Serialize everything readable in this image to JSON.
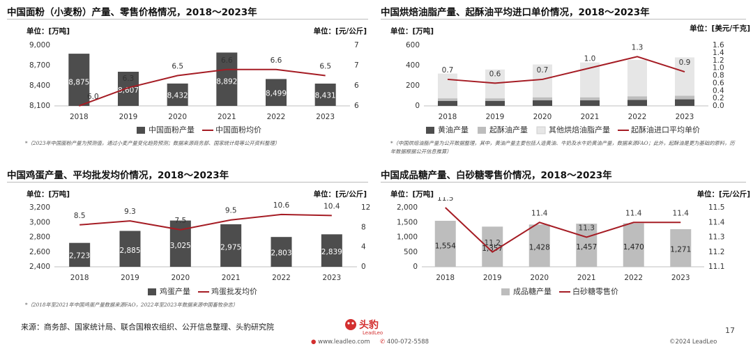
{
  "colors": {
    "dark_bar": "#4d4d4d",
    "light_bar": "#bdbdbd",
    "lighter_bar": "#e6e6e6",
    "line": "#a51c24",
    "brand": "#d32f2f"
  },
  "panels": [
    {
      "title": "中国面粉（小麦粉）产量、零售价格情况，2018～2023年",
      "unit_left": "单位：[万吨]",
      "unit_right": "单位：[元/公斤]",
      "note": "*（2023年中国面粉产量为预测值，通过小麦产量变化趋势预测；数据来源商务部、国家统计局等公开资料整理）"
    },
    {
      "title": "中国烘焙油脂产量、起酥油平均进口单价情况，2018～2023年",
      "unit_left": "单位：[万吨]",
      "unit_right": "单位：[美元/千克]",
      "note": "*（中国烘焙油脂产量为公开数据整理，其中，黄油产量主要包括人造黄油、牛奶及水牛奶黄油产量，数据来源FAO；此外，起酥油是更为基础的原料，历年数据根据公开信息推算）"
    },
    {
      "title": "中国鸡蛋产量、平均批发均价情况，2018～2023年",
      "unit_left": "单位：[万吨]",
      "unit_right": "单位：[元/公斤]",
      "note": "*（2018年至2021年中国鸡蛋产量数据来源FAO，2022年至2023年数据来源中国畜牧杂志）"
    },
    {
      "title": "中国成品糖产量、白砂糖零售价情况，2018～2023年",
      "unit_left": "单位：[万吨]",
      "unit_right": "单位：[元/公斤]",
      "note": ""
    }
  ],
  "chart_data": [
    {
      "type": "bar",
      "categories": [
        "2018",
        "2019",
        "2020",
        "2021",
        "2022",
        "2023"
      ],
      "series": [
        {
          "name": "中国面粉产量",
          "kind": "bar",
          "axis": "left",
          "values": [
            8875,
            8607,
            8432,
            8892,
            8499,
            8431
          ],
          "labels": [
            "8,875",
            "8,607",
            "8,432",
            "8,892",
            "8,499",
            "8,431"
          ]
        },
        {
          "name": "中国面粉均价",
          "kind": "line",
          "axis": "right",
          "values": [
            6.0,
            6.3,
            6.5,
            6.6,
            6.6,
            6.5
          ],
          "labels": [
            "6.0",
            "6.3",
            "6.5",
            "6.6",
            "6.6",
            "6.5"
          ]
        }
      ],
      "left_axis": {
        "min": 8100,
        "max": 9000,
        "ticks": [
          "8,100",
          "8,400",
          "8,700",
          "9,000"
        ],
        "values": [
          8100,
          8400,
          8700,
          9000
        ]
      },
      "right_axis": {
        "min": 6,
        "max": 7,
        "ticks": [
          "6",
          "6",
          "7",
          "7"
        ],
        "values": [
          6,
          6.333,
          6.667,
          7
        ]
      }
    },
    {
      "type": "bar",
      "categories": [
        "2018",
        "2019",
        "2020",
        "2021",
        "2022",
        "2023"
      ],
      "series": [
        {
          "name": "黄油产量",
          "kind": "stack",
          "axis": "left",
          "values": [
            50,
            50,
            55,
            55,
            60,
            65
          ]
        },
        {
          "name": "起酥油产量",
          "kind": "stack",
          "axis": "left",
          "values": [
            25,
            25,
            30,
            30,
            35,
            35
          ]
        },
        {
          "name": "其他烘焙油脂产量",
          "kind": "stack",
          "axis": "left",
          "values": [
            245,
            285,
            325,
            345,
            360,
            380
          ]
        },
        {
          "name": "起酥油进口平均单价",
          "kind": "line",
          "axis": "right",
          "values": [
            0.7,
            0.6,
            0.7,
            1.0,
            1.3,
            0.9
          ],
          "labels": [
            "0.7",
            "0.6",
            "0.7",
            "1.0",
            "1.3",
            "0.9"
          ]
        }
      ],
      "left_axis": {
        "min": 0,
        "max": 600,
        "ticks": [
          "0",
          "200",
          "400",
          "600"
        ],
        "values": [
          0,
          200,
          400,
          600
        ]
      },
      "right_axis": {
        "min": 0,
        "max": 1.6,
        "ticks": [
          "0.0",
          "0.2",
          "0.4",
          "0.6",
          "0.8",
          "1.0",
          "1.2",
          "1.4",
          "1.6"
        ],
        "values": [
          0,
          0.2,
          0.4,
          0.6,
          0.8,
          1.0,
          1.2,
          1.4,
          1.6
        ]
      }
    },
    {
      "type": "bar",
      "categories": [
        "2018",
        "2019",
        "2020",
        "2021",
        "2022",
        "2023"
      ],
      "series": [
        {
          "name": "鸡蛋产量",
          "kind": "bar",
          "axis": "left",
          "values": [
            2723,
            2885,
            3025,
            2975,
            2803,
            2839
          ],
          "labels": [
            "2,723",
            "2,885",
            "3,025",
            "2,975",
            "2,803",
            "2,839"
          ]
        },
        {
          "name": "鸡蛋批发均价",
          "kind": "line",
          "axis": "right",
          "values": [
            8.5,
            9.3,
            7.5,
            9.5,
            10.6,
            10.4
          ],
          "labels": [
            "8.5",
            "9.3",
            "7.5",
            "9.5",
            "10.6",
            "10.4"
          ]
        }
      ],
      "left_axis": {
        "min": 2400,
        "max": 3200,
        "ticks": [
          "2,400",
          "2,600",
          "2,800",
          "3,000",
          "3,200"
        ],
        "values": [
          2400,
          2600,
          2800,
          3000,
          3200
        ]
      },
      "right_axis": {
        "min": 0,
        "max": 12,
        "ticks": [
          "0",
          "4",
          "8",
          "12"
        ],
        "values": [
          0,
          4,
          8,
          12
        ]
      }
    },
    {
      "type": "bar",
      "categories": [
        "2018",
        "2019",
        "2020",
        "2021",
        "2022",
        "2023"
      ],
      "series": [
        {
          "name": "成品糖产量",
          "kind": "bar",
          "axis": "left",
          "values": [
            1554,
            1357,
            1428,
            1457,
            1470,
            1271
          ],
          "labels": [
            "1,554",
            "1,357",
            "1,428",
            "1,457",
            "1,470",
            "1,271"
          ]
        },
        {
          "name": "白砂糖零售价",
          "kind": "line",
          "axis": "right",
          "values": [
            11.5,
            11.2,
            11.4,
            11.3,
            11.4,
            11.4
          ],
          "labels": [
            "11.5",
            "11.2",
            "11.4",
            "11.3",
            "11.4",
            "11.4"
          ]
        }
      ],
      "left_axis": {
        "min": 0,
        "max": 2000,
        "ticks": [
          "0",
          "500",
          "1,000",
          "1,500",
          "2,000"
        ],
        "values": [
          0,
          500,
          1000,
          1500,
          2000
        ]
      },
      "right_axis": {
        "min": 11.1,
        "max": 11.5,
        "ticks": [
          "11.1",
          "11.2",
          "11.3",
          "11.4",
          "11.5"
        ],
        "values": [
          11.1,
          11.2,
          11.3,
          11.4,
          11.5
        ]
      }
    }
  ],
  "footer": {
    "source": "来源：商务部、国家统计局、联合国粮农组织、公开信息整理、头豹研究院",
    "brand": "头豹",
    "brand_en": "LeadLeo",
    "website": "www.leadleo.com",
    "phone": "400-072-5588",
    "copyright": "©2024 LeadLeo",
    "page": "17"
  }
}
